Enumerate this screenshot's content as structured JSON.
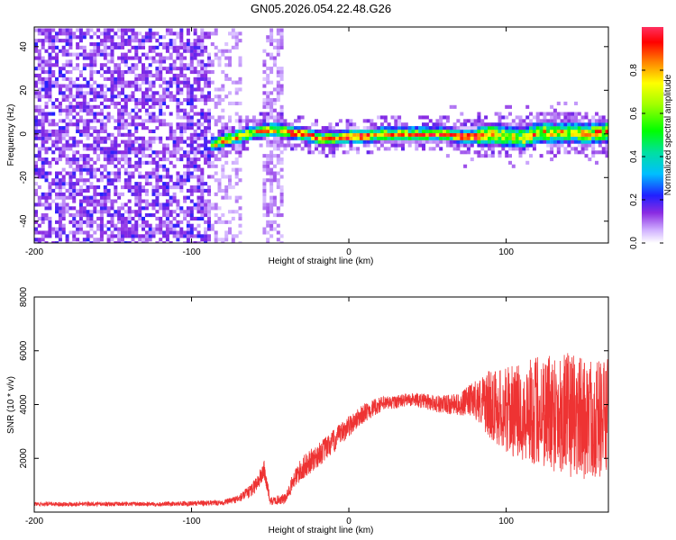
{
  "chart_data": [
    {
      "type": "heatmap",
      "title": "GN05.2026.054.22.48.G26",
      "xlabel": "Height of straight line (km)",
      "ylabel": "Frequency (Hz)",
      "xlim": [
        -200,
        165
      ],
      "ylim": [
        -50,
        49
      ],
      "xticks": [
        -200,
        -100,
        0,
        100
      ],
      "yticks": [
        -40,
        -20,
        0,
        20,
        40
      ],
      "colorbar": {
        "label": "Normalized spectral amplitude",
        "range": [
          0.0,
          1.0
        ],
        "ticks": [
          0.0,
          0.2,
          0.4,
          0.6,
          0.8
        ],
        "tick_labels": [
          "0.0",
          "0.2",
          "0.4",
          "0.6",
          "0.8"
        ]
      },
      "ridge": {
        "description_points_x": [
          -88,
          -80,
          -70,
          -60,
          -50,
          -40,
          -30,
          -20,
          -10,
          0,
          10,
          20,
          30,
          40,
          50,
          60,
          70,
          80,
          90,
          100,
          110,
          120,
          130,
          140,
          150,
          160
        ],
        "frequency_hz": [
          -5,
          -3,
          -1,
          1,
          2,
          1,
          0,
          -2,
          -2,
          -1,
          -1,
          0,
          0,
          0,
          0,
          0,
          -1,
          -1,
          0,
          -1,
          -2,
          1,
          0,
          1,
          0,
          1
        ]
      },
      "noise_region_x": [
        -200,
        -88
      ],
      "noise_band_x": [
        -55,
        -42
      ]
    },
    {
      "type": "line",
      "title": "",
      "xlabel": "Height of straight line (km)",
      "ylabel": "SNR (10 * v/v)",
      "xlim": [
        -200,
        165
      ],
      "ylim": [
        0,
        8000
      ],
      "xticks": [
        -200,
        -100,
        0,
        100
      ],
      "yticks": [
        2000,
        4000,
        6000,
        8000
      ],
      "color": "#ee3333",
      "envelope_x": [
        -200,
        -120,
        -80,
        -70,
        -62,
        -56,
        -54,
        -50,
        -40,
        -35,
        -30,
        -20,
        -10,
        0,
        10,
        20,
        30,
        40,
        50,
        60,
        70,
        80,
        90,
        100,
        110,
        120,
        130,
        140,
        150,
        160,
        165
      ],
      "envelope_mean": [
        300,
        300,
        350,
        500,
        800,
        1300,
        1600,
        400,
        500,
        1200,
        1600,
        2100,
        2600,
        3200,
        3700,
        4000,
        4100,
        4200,
        4100,
        4000,
        4000,
        4200,
        4000,
        3800,
        3700,
        3800,
        3800,
        3600,
        3500,
        3500,
        3500
      ],
      "envelope_spread": [
        80,
        80,
        100,
        150,
        250,
        350,
        400,
        150,
        200,
        350,
        450,
        450,
        450,
        400,
        350,
        300,
        250,
        250,
        300,
        350,
        400,
        700,
        1300,
        1600,
        1800,
        2100,
        2300,
        2300,
        2300,
        2200,
        2200
      ]
    }
  ]
}
